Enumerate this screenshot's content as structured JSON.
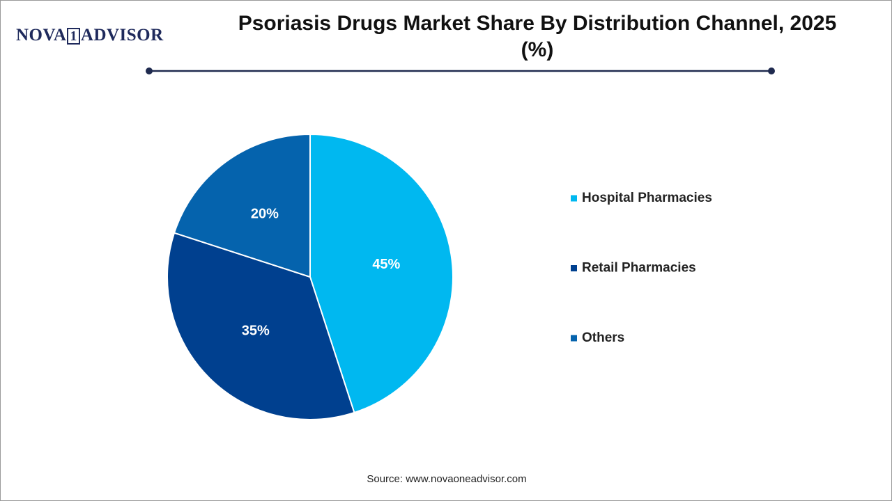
{
  "logo": [
    "NOVA",
    "1",
    "ADVISOR"
  ],
  "source": "Source: www.novaoneadvisor.com",
  "chart_data": {
    "type": "pie",
    "title": "Psoriasis Drugs Market Share By Distribution Channel, 2025 (%)",
    "categories": [
      "Hospital Pharmacies",
      "Retail Pharmacies",
      "Others"
    ],
    "values": [
      45,
      35,
      20
    ],
    "value_labels": [
      "45%",
      "35%",
      "20%"
    ],
    "colors": [
      "#00b8f0",
      "#00408f",
      "#0563ad"
    ],
    "legend": "right"
  }
}
